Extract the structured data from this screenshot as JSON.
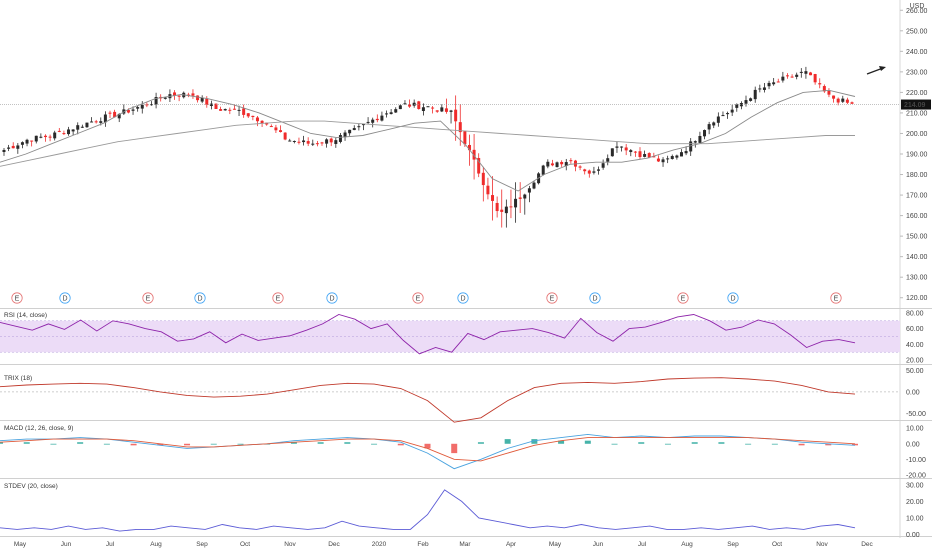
{
  "currency": "USD",
  "last_price_label": "214.09",
  "colors": {
    "up": "#2a2a2a",
    "down": "#ef2b2b",
    "ma_50": "#8a8a8a",
    "ma_200": "#9a9a9a",
    "rsi": "#8e24aa",
    "rsi_band": "#ecdcf7",
    "trix": "#c0392b",
    "macd": "#4aa3df",
    "signal": "#e05a3a",
    "hist_up": "#26a69a",
    "hist_down": "#ef5350",
    "stdev": "#5b5bd6",
    "earnings": "#e57373",
    "dividend": "#42a5f5"
  },
  "chart_data": [
    {
      "type": "candlestick",
      "pane": "price",
      "yaxis_ticks": [
        "260.00",
        "250.00",
        "240.00",
        "230.00",
        "220.00",
        "210.00",
        "200.00",
        "190.00",
        "180.00",
        "170.00",
        "160.00",
        "150.00",
        "140.00",
        "130.00",
        "120.00"
      ],
      "ylim": [
        115,
        265
      ],
      "x_months": [
        "May",
        "Jun",
        "Jul",
        "Aug",
        "Sep",
        "Oct",
        "Nov",
        "Dec",
        "2020",
        "Feb",
        "Mar",
        "Apr",
        "May",
        "Jun",
        "Jul",
        "Aug",
        "Sep",
        "Oct",
        "Nov",
        "Dec"
      ],
      "close_anchors": [
        192,
        197,
        199,
        203,
        207,
        210,
        214,
        219,
        219,
        212,
        211,
        206,
        197,
        195,
        197,
        202,
        209,
        214,
        213,
        210,
        185,
        160,
        170,
        185,
        187,
        180,
        195,
        190,
        186,
        193,
        206,
        212,
        221,
        226,
        230,
        218,
        214
      ],
      "ma_50": [
        186,
        190,
        195,
        200,
        205,
        212,
        217,
        219,
        217,
        214,
        210,
        205,
        200,
        198,
        199,
        202,
        205,
        206,
        194,
        178,
        172,
        180,
        185,
        186,
        186,
        188,
        192,
        195,
        200,
        208,
        215,
        220,
        221,
        218
      ],
      "ma_200": [
        184,
        187,
        190,
        193,
        196,
        198,
        200,
        202,
        204,
        205,
        206,
        206,
        205,
        204,
        203,
        202,
        201,
        200,
        199,
        198,
        197,
        196,
        195,
        195,
        195,
        196,
        197,
        198,
        199,
        199
      ],
      "earnings_markers": [
        "E",
        "E",
        "E",
        "E",
        "E",
        "E",
        "E"
      ],
      "dividend_markers": [
        "D",
        "D",
        "D",
        "D",
        "D",
        "D"
      ]
    },
    {
      "type": "line",
      "pane": "rsi",
      "label": "RSI (14, close)",
      "yaxis_ticks": [
        "80.00",
        "60.00",
        "40.00",
        "20.00"
      ],
      "ylim": [
        15,
        85
      ],
      "band": [
        30,
        70
      ],
      "values": [
        68,
        63,
        58,
        66,
        59,
        71,
        57,
        70,
        66,
        60,
        56,
        44,
        47,
        56,
        42,
        53,
        45,
        48,
        51,
        58,
        66,
        78,
        72,
        60,
        66,
        45,
        28,
        36,
        30,
        54,
        46,
        56,
        58,
        60,
        55,
        48,
        73,
        55,
        44,
        60,
        62,
        68,
        75,
        78,
        70,
        58,
        62,
        71,
        66,
        52,
        36,
        44,
        46,
        42
      ]
    },
    {
      "type": "line",
      "pane": "trix",
      "label": "TRIX (18)",
      "yaxis_ticks": [
        "50.00",
        "0.00",
        "-50.00"
      ],
      "ylim": [
        -65,
        60
      ],
      "values": [
        12,
        16,
        18,
        20,
        18,
        10,
        0,
        -8,
        -12,
        -10,
        -5,
        5,
        15,
        20,
        18,
        8,
        -20,
        -70,
        -60,
        -20,
        10,
        20,
        22,
        20,
        24,
        30,
        32,
        33,
        30,
        25,
        15,
        0,
        -5
      ]
    },
    {
      "type": "line",
      "pane": "macd",
      "label": "MACD (12, 26, close, 9)",
      "yaxis_ticks": [
        "10.00",
        "0.00",
        "-10.00",
        "-20.00"
      ],
      "ylim": [
        -22,
        14
      ],
      "macd_values": [
        2,
        3,
        3,
        4,
        3,
        1,
        -1,
        -3,
        -2,
        -1,
        0,
        2,
        3,
        4,
        3,
        1,
        -6,
        -16,
        -10,
        -3,
        2,
        4,
        6,
        4,
        5,
        4,
        5,
        5,
        4,
        3,
        1,
        0,
        -1
      ],
      "signal_values": [
        1,
        2,
        3,
        3,
        3,
        2,
        0,
        -2,
        -2,
        -1,
        0,
        1,
        2,
        3,
        3,
        2,
        -3,
        -10,
        -11,
        -6,
        -1,
        2,
        4,
        4,
        4,
        4,
        4,
        4,
        4,
        3,
        2,
        1,
        0
      ]
    },
    {
      "type": "line",
      "pane": "stdev",
      "label": "STDEV (20, close)",
      "yaxis_ticks": [
        "30.00",
        "20.00",
        "10.00",
        "0.00"
      ],
      "ylim": [
        -1,
        33
      ],
      "values": [
        4,
        3,
        4,
        3,
        5,
        3,
        4,
        2,
        3,
        3,
        5,
        4,
        3,
        6,
        4,
        3,
        5,
        4,
        3,
        4,
        8,
        5,
        4,
        3,
        3,
        12,
        27,
        20,
        10,
        8,
        6,
        4,
        5,
        4,
        6,
        4,
        3,
        4,
        5,
        3,
        3,
        4,
        3,
        4,
        5,
        3,
        4,
        3,
        5,
        6,
        4
      ]
    }
  ]
}
